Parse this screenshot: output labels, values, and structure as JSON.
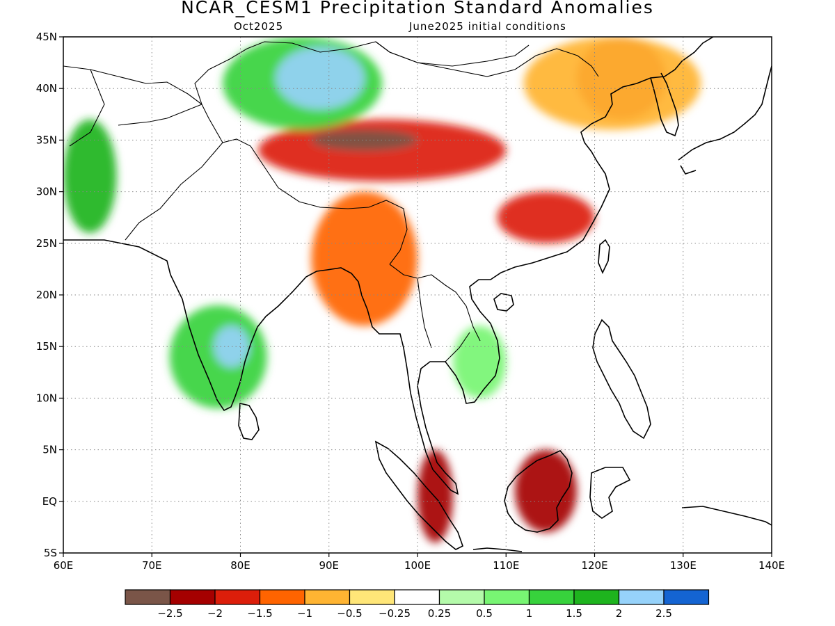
{
  "title": "NCAR_CESM1 Precipitation Standard Anomalies",
  "subtitle_left": "Oct2025",
  "subtitle_right": "June2025 initial conditions",
  "map": {
    "lon_range": [
      60,
      140
    ],
    "lat_range": [
      -5,
      45
    ],
    "y_ticks": [
      {
        "lat": 45,
        "label": "45N"
      },
      {
        "lat": 40,
        "label": "40N"
      },
      {
        "lat": 35,
        "label": "35N"
      },
      {
        "lat": 30,
        "label": "30N"
      },
      {
        "lat": 25,
        "label": "25N"
      },
      {
        "lat": 20,
        "label": "20N"
      },
      {
        "lat": 15,
        "label": "15N"
      },
      {
        "lat": 10,
        "label": "10N"
      },
      {
        "lat": 5,
        "label": "5N"
      },
      {
        "lat": 0,
        "label": "EQ"
      },
      {
        "lat": -5,
        "label": "5S"
      }
    ],
    "x_ticks": [
      {
        "lon": 60,
        "label": "60E"
      },
      {
        "lon": 70,
        "label": "70E"
      },
      {
        "lon": 80,
        "label": "80E"
      },
      {
        "lon": 90,
        "label": "90E"
      },
      {
        "lon": 100,
        "label": "100E"
      },
      {
        "lon": 110,
        "label": "110E"
      },
      {
        "lon": 120,
        "label": "120E"
      },
      {
        "lon": 130,
        "label": "130E"
      },
      {
        "lon": 140,
        "label": "140E"
      }
    ],
    "grid": "dotted"
  },
  "colorbar": {
    "colors": [
      "#7a5548",
      "#a50000",
      "#dc1e0a",
      "#ff6400",
      "#ffb432",
      "#ffe678",
      "#ffffff",
      "#b4faaa",
      "#78f573",
      "#37d23c",
      "#1eb41e",
      "#96d2fa",
      "#1464d2"
    ],
    "labels": [
      "-2.5",
      "-2",
      "-1.5",
      "-1",
      "-0.5",
      "-0.25",
      "0.25",
      "0.5",
      "1",
      "1.5",
      "2",
      "2.5"
    ]
  },
  "anomaly_regions": [
    {
      "name": "east-china-sea-north",
      "value": -1.5,
      "lon": [
        118,
        128
      ],
      "lat": [
        37,
        45
      ]
    },
    {
      "name": "northeast-china",
      "value": -0.5,
      "lon": [
        112,
        132
      ],
      "lat": [
        36,
        45
      ]
    },
    {
      "name": "tibetan-plateau",
      "value": -1.5,
      "lon": [
        82,
        110
      ],
      "lat": [
        31,
        37
      ]
    },
    {
      "name": "tibet-core",
      "value": -2.5,
      "lon": [
        88,
        100
      ],
      "lat": [
        34,
        36
      ]
    },
    {
      "name": "south-china",
      "value": -1.5,
      "lon": [
        109,
        120
      ],
      "lat": [
        25,
        30
      ]
    },
    {
      "name": "myanmar-northeast-india",
      "value": -1.0,
      "lon": [
        88,
        100
      ],
      "lat": [
        17,
        30
      ]
    },
    {
      "name": "mongolia-west",
      "value": 1.5,
      "lon": [
        78,
        96
      ],
      "lat": [
        36,
        45
      ]
    },
    {
      "name": "mongolia-core",
      "value": 2.5,
      "lon": [
        84,
        94
      ],
      "lat": [
        38,
        44
      ]
    },
    {
      "name": "central-asia-west",
      "value": 2.0,
      "lon": [
        60,
        66
      ],
      "lat": [
        26,
        37
      ]
    },
    {
      "name": "south-india",
      "value": 1.5,
      "lon": [
        72,
        83
      ],
      "lat": [
        9,
        19
      ]
    },
    {
      "name": "south-india-core",
      "value": 2.5,
      "lon": [
        77,
        81
      ],
      "lat": [
        13,
        17
      ]
    },
    {
      "name": "indochina",
      "value": 1.0,
      "lon": [
        104,
        110
      ],
      "lat": [
        10,
        17
      ]
    },
    {
      "name": "borneo-west",
      "value": -2.0,
      "lon": [
        111,
        118
      ],
      "lat": [
        -3,
        5
      ]
    },
    {
      "name": "sumatra-east",
      "value": -2.0,
      "lon": [
        100,
        104
      ],
      "lat": [
        -4,
        5
      ]
    }
  ]
}
